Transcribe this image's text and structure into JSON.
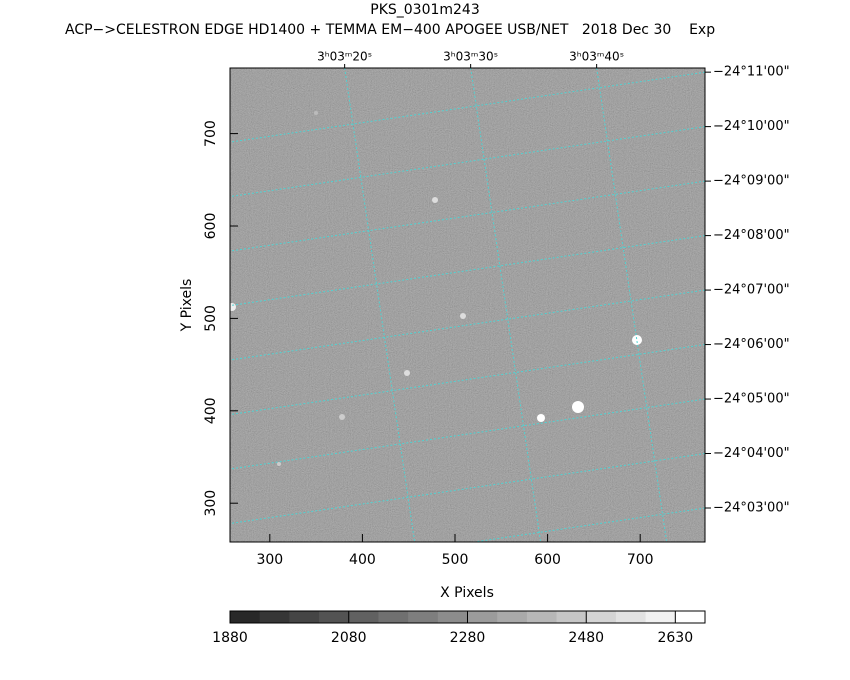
{
  "chart_data": {
    "type": "image",
    "title": "PKS_0301m243",
    "subtitle": "ACP−>CELESTRON EDGE HD1400 + TEMMA EM−400 APOGEE USB/NET   2018 Dec 30    Exp",
    "xlabel": "X Pixels",
    "ylabel": "Y Pixels",
    "xlim": [
      257,
      770
    ],
    "ylim": [
      258,
      771
    ],
    "xticks": [
      300,
      400,
      500,
      600,
      700
    ],
    "yticks": [
      300,
      400,
      500,
      600,
      700
    ],
    "x2lim": [
      10990.9,
      11028.6
    ],
    "x2ticks": [
      {
        "value": 11000,
        "label": "3ʰ03ᵐ20ˢ"
      },
      {
        "value": 11010,
        "label": "3ʰ03ᵐ30ˢ"
      },
      {
        "value": 11020,
        "label": "3ʰ03ᵐ40ˢ"
      }
    ],
    "y2lim": [
      -24.0396,
      -24.1846
    ],
    "y2ticks": [
      {
        "value": -24.18333,
        "label": "−24°11'00\""
      },
      {
        "value": -24.16667,
        "label": "−24°10'00\""
      },
      {
        "value": -24.15,
        "label": "−24°09'00\""
      },
      {
        "value": -24.13333,
        "label": "−24°08'00\""
      },
      {
        "value": -24.11667,
        "label": "−24°07'00\""
      },
      {
        "value": -24.1,
        "label": "−24°06'00\""
      },
      {
        "value": -24.08333,
        "label": "−24°05'00\""
      },
      {
        "value": -24.06667,
        "label": "−24°04'00\""
      },
      {
        "value": -24.05,
        "label": "−24°03'00\""
      }
    ],
    "grid": true,
    "grid_color": "#4fd3d3",
    "colorbar": {
      "clim": [
        1880,
        2680
      ],
      "ticks": [
        1880,
        2080,
        2280,
        2480,
        2630
      ],
      "steps": 16
    }
  }
}
